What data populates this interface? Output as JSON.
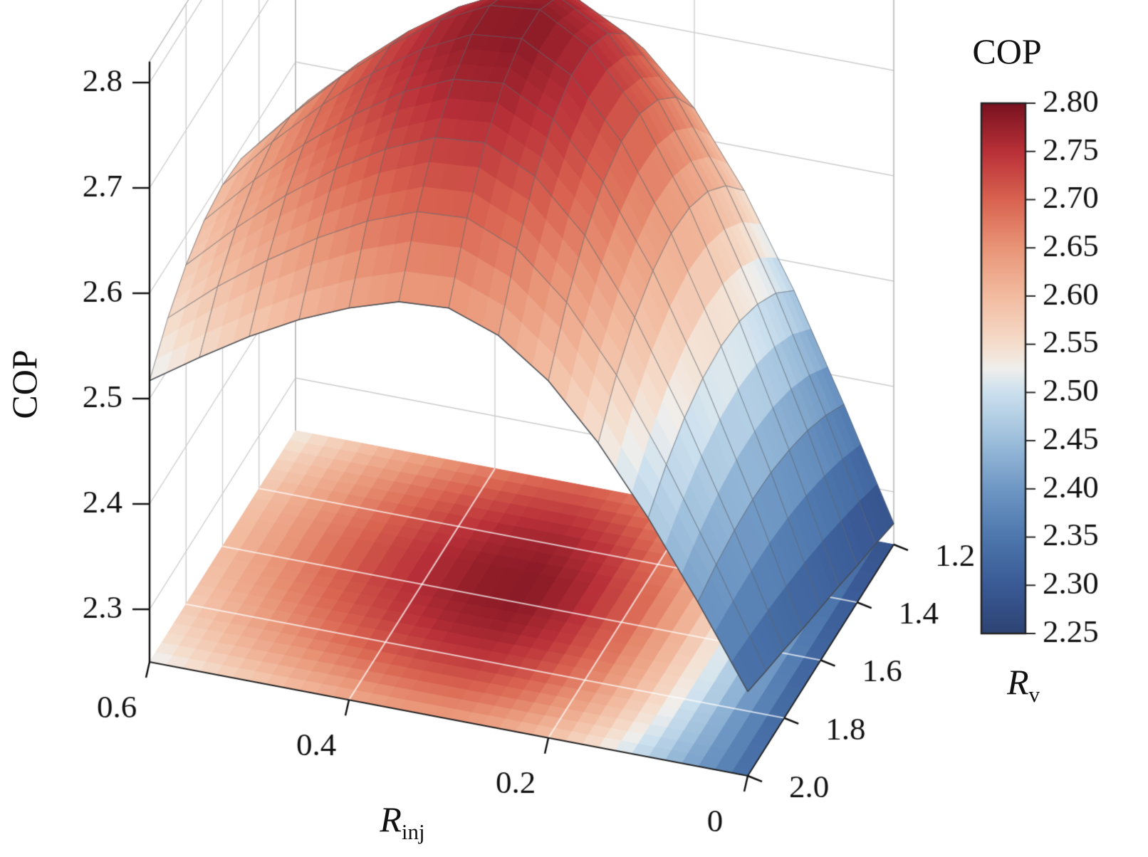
{
  "figure": {
    "background": "#ffffff"
  },
  "chart_data": {
    "type": "surface",
    "title": "",
    "x": {
      "label": "R_inj",
      "label_base": "R",
      "label_sub": "inj",
      "range": [
        0,
        0.6
      ],
      "tick_values": [
        0.6,
        0.4,
        0.2,
        0
      ],
      "tick_labels": [
        "0.6",
        "0.4",
        "0.2",
        "0"
      ],
      "values": [
        0,
        0.05,
        0.1,
        0.15,
        0.2,
        0.25,
        0.3,
        0.35,
        0.4,
        0.45,
        0.5,
        0.55,
        0.6
      ]
    },
    "y": {
      "label": "R_v",
      "label_base": "R",
      "label_sub": "v",
      "range": [
        1.2,
        2.0
      ],
      "tick_values": [
        2.0,
        1.8,
        1.6,
        1.4,
        1.2
      ],
      "tick_labels": [
        "2.0",
        "1.8",
        "1.6",
        "1.4",
        "1.2"
      ],
      "values": [
        1.2,
        1.3,
        1.4,
        1.5,
        1.6,
        1.7,
        1.8,
        1.9,
        2.0
      ]
    },
    "z": {
      "label": "COP",
      "range": [
        2.25,
        2.82
      ],
      "tick_values": [
        2.3,
        2.4,
        2.5,
        2.6,
        2.7,
        2.8
      ],
      "tick_labels": [
        "2.3",
        "2.4",
        "2.5",
        "2.6",
        "2.7",
        "2.8"
      ]
    },
    "cop_values": [
      [
        2.27,
        2.374,
        2.473,
        2.559,
        2.628,
        2.675,
        2.698,
        2.694,
        2.674,
        2.646,
        2.611,
        2.572,
        2.528
      ],
      [
        2.278,
        2.391,
        2.498,
        2.591,
        2.666,
        2.717,
        2.742,
        2.738,
        2.716,
        2.685,
        2.648,
        2.606,
        2.558
      ],
      [
        2.285,
        2.404,
        2.515,
        2.613,
        2.691,
        2.745,
        2.771,
        2.766,
        2.743,
        2.711,
        2.672,
        2.628,
        2.578
      ],
      [
        2.293,
        2.413,
        2.526,
        2.625,
        2.705,
        2.759,
        2.786,
        2.781,
        2.758,
        2.725,
        2.686,
        2.64,
        2.59
      ],
      [
        2.3,
        2.419,
        2.53,
        2.628,
        2.706,
        2.76,
        2.786,
        2.781,
        2.758,
        2.726,
        2.687,
        2.643,
        2.593
      ],
      [
        2.307,
        2.421,
        2.527,
        2.62,
        2.695,
        2.746,
        2.771,
        2.766,
        2.745,
        2.714,
        2.677,
        2.634,
        2.587
      ],
      [
        2.315,
        2.419,
        2.517,
        2.603,
        2.672,
        2.719,
        2.742,
        2.738,
        2.718,
        2.69,
        2.656,
        2.616,
        2.572
      ],
      [
        2.322,
        2.414,
        2.5,
        2.576,
        2.636,
        2.678,
        2.698,
        2.695,
        2.677,
        2.652,
        2.622,
        2.588,
        2.549
      ],
      [
        2.33,
        2.406,
        2.477,
        2.539,
        2.589,
        2.623,
        2.64,
        2.637,
        2.622,
        2.602,
        2.577,
        2.548,
        2.517
      ]
    ],
    "floor_projection": true,
    "colorbar": {
      "title": "COP",
      "min": 2.25,
      "max": 2.8,
      "tick_values": [
        2.8,
        2.75,
        2.7,
        2.65,
        2.6,
        2.55,
        2.5,
        2.45,
        2.4,
        2.35,
        2.3,
        2.25
      ],
      "tick_labels": [
        "2.80",
        "2.75",
        "2.70",
        "2.65",
        "2.60",
        "2.55",
        "2.50",
        "2.45",
        "2.40",
        "2.35",
        "2.30",
        "2.25"
      ]
    },
    "colormap": [
      [
        2.25,
        "#2d4373"
      ],
      [
        2.3,
        "#3a5a96"
      ],
      [
        2.35,
        "#4d77ad"
      ],
      [
        2.4,
        "#6f97c4"
      ],
      [
        2.45,
        "#9cbedb"
      ],
      [
        2.5,
        "#cce0ee"
      ],
      [
        2.525,
        "#f0efec"
      ],
      [
        2.55,
        "#f5ddcc"
      ],
      [
        2.6,
        "#f2bba0"
      ],
      [
        2.65,
        "#e99577"
      ],
      [
        2.7,
        "#d96350"
      ],
      [
        2.75,
        "#b93038"
      ],
      [
        2.8,
        "#77121f"
      ]
    ]
  }
}
